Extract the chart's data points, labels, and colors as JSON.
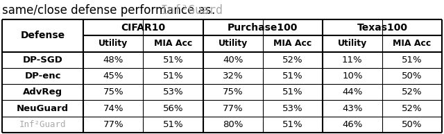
{
  "caption_prefix": "same/close defense performance as ",
  "caption_mono": "Inf²Guard",
  "caption_suffix": ".",
  "headers_top": [
    "CIFAR10",
    "Purchase100",
    "Texas100"
  ],
  "headers_sub": [
    "Utility",
    "MIA Acc",
    "Utility",
    "MIA Acc",
    "Utility",
    "MIA Acc"
  ],
  "rows": [
    [
      "DP-SGD",
      "48%",
      "51%",
      "40%",
      "52%",
      "11%",
      "51%"
    ],
    [
      "DP-enc",
      "45%",
      "51%",
      "32%",
      "51%",
      "10%",
      "50%"
    ],
    [
      "AdvReg",
      "75%",
      "53%",
      "75%",
      "51%",
      "44%",
      "52%"
    ],
    [
      "NeuGuard",
      "74%",
      "56%",
      "77%",
      "53%",
      "43%",
      "52%"
    ],
    [
      "Inf²Guard",
      "77%",
      "51%",
      "80%",
      "51%",
      "46%",
      "50%"
    ]
  ],
  "row_bold": [
    true,
    true,
    true,
    true,
    false
  ],
  "bg_color": "#ffffff",
  "text_color": "#000000",
  "gray_color": "#aaaaaa",
  "figure_width": 6.4,
  "figure_height": 1.93,
  "dpi": 100
}
